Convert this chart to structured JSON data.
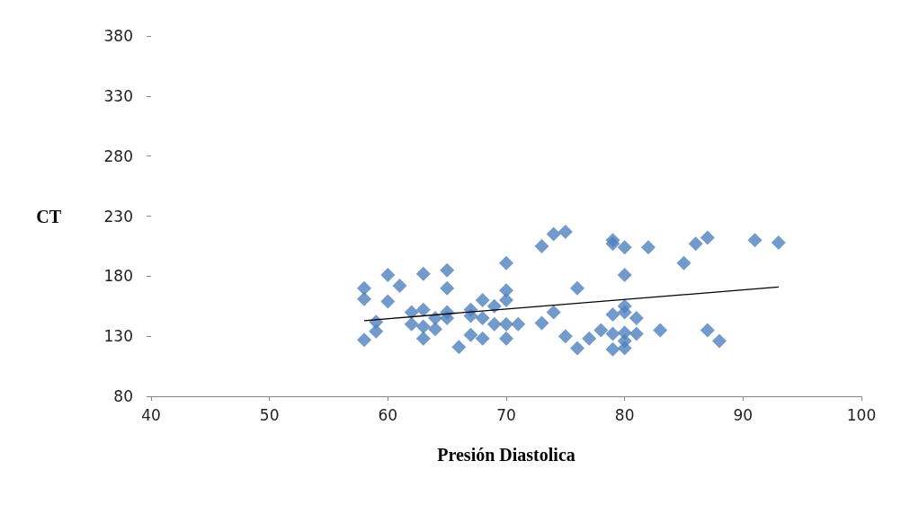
{
  "chart_data": {
    "type": "scatter",
    "xlabel": "Presión Diastolica",
    "ylabel": "CT",
    "xlim": [
      40,
      100
    ],
    "xticks": [
      40,
      50,
      60,
      70,
      80,
      90,
      100
    ],
    "ylim": [
      80,
      380
    ],
    "yticks": [
      80,
      130,
      180,
      230,
      280,
      330,
      380
    ],
    "grid": false,
    "marker": "diamond",
    "series": [
      {
        "color": "#4f81bd",
        "x": [
          58,
          58,
          58,
          59,
          59,
          60,
          60,
          61,
          62,
          62,
          63,
          63,
          63,
          63,
          64,
          64,
          65,
          65,
          65,
          65,
          66,
          67,
          67,
          67,
          68,
          68,
          68,
          69,
          69,
          70,
          70,
          70,
          70,
          70,
          71,
          73,
          73,
          74,
          74,
          75,
          75,
          76,
          76,
          77,
          78,
          79,
          79,
          79,
          79,
          79,
          80,
          80,
          80,
          80,
          80,
          80,
          80,
          81,
          81,
          82,
          83,
          85,
          86,
          87,
          87,
          88,
          91,
          93
        ],
        "values": [
          170,
          161,
          127,
          142,
          134,
          181,
          159,
          172,
          150,
          140,
          182,
          152,
          138,
          128,
          145,
          136,
          185,
          170,
          150,
          145,
          121,
          152,
          147,
          131,
          160,
          145,
          128,
          155,
          140,
          191,
          168,
          160,
          140,
          128,
          140,
          205,
          141,
          215,
          150,
          217,
          130,
          170,
          120,
          128,
          135,
          210,
          207,
          148,
          132,
          119,
          204,
          181,
          155,
          150,
          133,
          126,
          120,
          145,
          132,
          204,
          135,
          191,
          207,
          212,
          135,
          126,
          210,
          208
        ]
      },
      {
        "type": "line",
        "color": "#000000",
        "marker": "none",
        "x": [
          58,
          93
        ],
        "values": [
          143,
          171
        ]
      }
    ]
  }
}
